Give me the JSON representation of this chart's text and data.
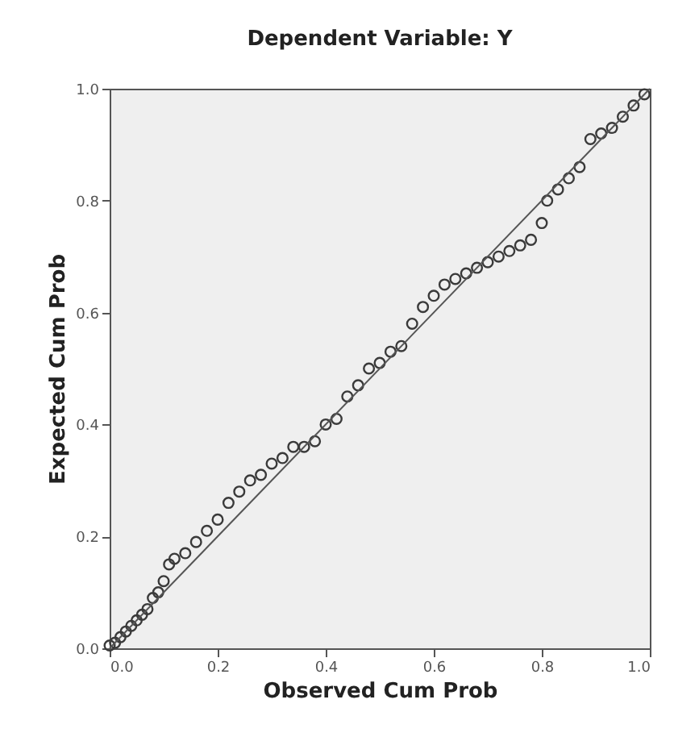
{
  "chart_data": {
    "type": "scatter",
    "title": "Dependent Variable: Y",
    "xlabel": "Observed Cum Prob",
    "ylabel": "Expected Cum Prob",
    "xlim": [
      0,
      1
    ],
    "ylim": [
      0,
      1
    ],
    "xticks": [
      {
        "value": 0,
        "label": "0.0"
      },
      0.2,
      0.4,
      0.6,
      0.8,
      {
        "value": 1,
        "label": "1.0"
      }
    ],
    "yticks": [
      {
        "value": 0,
        "label": "0.0"
      },
      0.2,
      0.4,
      0.6,
      0.8,
      {
        "value": 1,
        "label": "1.0"
      }
    ],
    "grid": false,
    "marker": "circle",
    "series": [
      {
        "color": "#3a3a3a",
        "x": [
          0.0,
          0.01,
          0.02,
          0.03,
          0.04,
          0.05,
          0.06,
          0.07,
          0.08,
          0.09,
          0.1,
          0.11,
          0.12,
          0.14,
          0.16,
          0.18,
          0.2,
          0.22,
          0.24,
          0.26,
          0.28,
          0.3,
          0.32,
          0.34,
          0.36,
          0.38,
          0.4,
          0.42,
          0.44,
          0.46,
          0.48,
          0.5,
          0.52,
          0.54,
          0.56,
          0.58,
          0.6,
          0.62,
          0.64,
          0.66,
          0.68,
          0.7,
          0.72,
          0.74,
          0.76,
          0.78,
          0.8,
          0.81,
          0.83,
          0.85,
          0.87,
          0.89,
          0.91,
          0.93,
          0.95,
          0.97,
          0.99
        ],
        "values": [
          0.005,
          0.01,
          0.02,
          0.03,
          0.04,
          0.05,
          0.06,
          0.07,
          0.09,
          0.1,
          0.12,
          0.15,
          0.16,
          0.17,
          0.19,
          0.21,
          0.23,
          0.26,
          0.28,
          0.3,
          0.31,
          0.33,
          0.34,
          0.36,
          0.36,
          0.37,
          0.4,
          0.41,
          0.45,
          0.47,
          0.5,
          0.51,
          0.53,
          0.54,
          0.58,
          0.61,
          0.63,
          0.65,
          0.66,
          0.67,
          0.68,
          0.69,
          0.7,
          0.71,
          0.72,
          0.73,
          0.76,
          0.8,
          0.82,
          0.84,
          0.86,
          0.91,
          0.92,
          0.93,
          0.95,
          0.97,
          0.99
        ]
      },
      {
        "type": "line",
        "marker": "none",
        "color": "#555555",
        "x": [
          0,
          1
        ],
        "values": [
          0,
          1
        ]
      }
    ]
  }
}
